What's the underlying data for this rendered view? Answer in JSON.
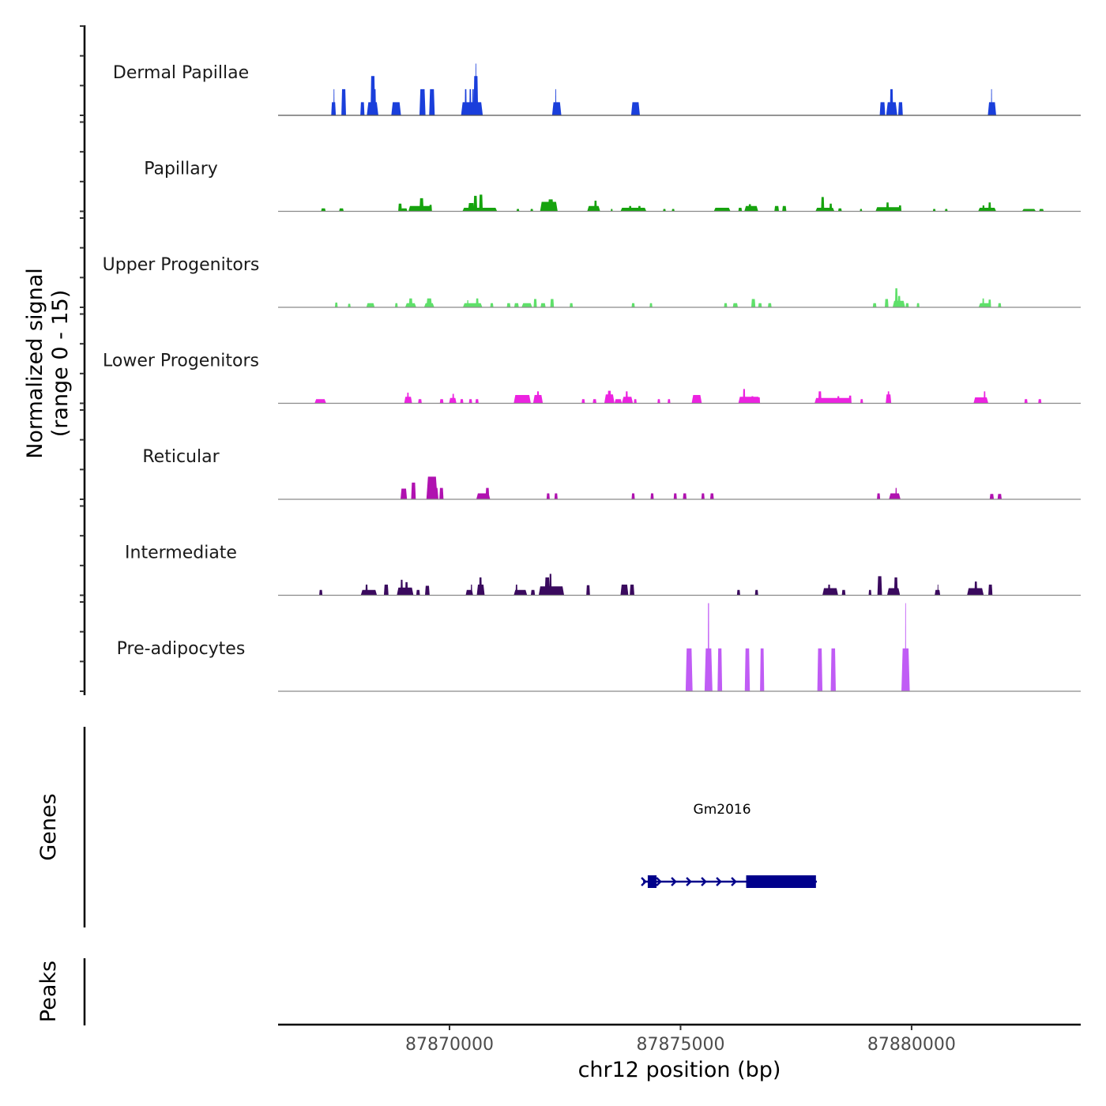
{
  "chart_data": {
    "type": "area",
    "title": "",
    "ylabel_line1": "Normalized signal",
    "ylabel_line2": "(range 0 - 15)",
    "xlabel": "chr12 position (bp)",
    "xlim": [
      87866290,
      87883660
    ],
    "ylim": [
      0,
      15
    ],
    "x_ticks": [
      87870000,
      87875000,
      87880000
    ],
    "x_tick_labels": [
      "87870000",
      "87875000",
      "87880000"
    ],
    "y_ticks_per_track": [
      0,
      5,
      10,
      15
    ],
    "grid": false,
    "tracks": [
      {
        "name": "Dermal Papillae",
        "color": "#1a3fdb",
        "segments": [
          [
            87867440,
            87867540,
            2.2
          ],
          [
            87867490,
            87867510,
            4.4
          ],
          [
            87867660,
            87867760,
            4.4
          ],
          [
            87868070,
            87868160,
            2.2
          ],
          [
            87868210,
            87868460,
            2.2
          ],
          [
            87868290,
            87868390,
            6.6
          ],
          [
            87868340,
            87868410,
            4.4
          ],
          [
            87868740,
            87868950,
            2.2
          ],
          [
            87869350,
            87869480,
            4.4
          ],
          [
            87869560,
            87869680,
            4.4
          ],
          [
            87870250,
            87870720,
            2.2
          ],
          [
            87870330,
            87870370,
            4.4
          ],
          [
            87870430,
            87870470,
            4.4
          ],
          [
            87870490,
            87870530,
            4.4
          ],
          [
            87870520,
            87870620,
            6.6
          ],
          [
            87870560,
            87870580,
            8.7
          ],
          [
            87872220,
            87872420,
            2.2
          ],
          [
            87872290,
            87872310,
            4.4
          ],
          [
            87873930,
            87874120,
            2.2
          ],
          [
            87879310,
            87879430,
            2.2
          ],
          [
            87879450,
            87879690,
            2.2
          ],
          [
            87879530,
            87879600,
            4.4
          ],
          [
            87879710,
            87879810,
            2.2
          ],
          [
            87881650,
            87881830,
            2.2
          ],
          [
            87881720,
            87881740,
            4.4
          ]
        ]
      },
      {
        "name": "Papillary",
        "color": "#16a30e",
        "segments": [
          [
            87867220,
            87867320,
            0.5
          ],
          [
            87867610,
            87867710,
            0.5
          ],
          [
            87868890,
            87868970,
            1.3
          ],
          [
            87868950,
            87869090,
            0.5
          ],
          [
            87869110,
            87869620,
            0.9
          ],
          [
            87869350,
            87869440,
            2.2
          ],
          [
            87869560,
            87869620,
            1.1
          ],
          [
            87870280,
            87871030,
            0.6
          ],
          [
            87870400,
            87870540,
            1.4
          ],
          [
            87870520,
            87870600,
            2.6
          ],
          [
            87870640,
            87870720,
            2.8
          ],
          [
            87871450,
            87871510,
            0.4
          ],
          [
            87871750,
            87871810,
            0.4
          ],
          [
            87871960,
            87872340,
            1.6
          ],
          [
            87872130,
            87872250,
            2.0
          ],
          [
            87872980,
            87873260,
            0.9
          ],
          [
            87873130,
            87873190,
            1.8
          ],
          [
            87873490,
            87873530,
            0.4
          ],
          [
            87873700,
            87874260,
            0.6
          ],
          [
            87873880,
            87873940,
            0.9
          ],
          [
            87874080,
            87874140,
            0.9
          ],
          [
            87874620,
            87874680,
            0.4
          ],
          [
            87874810,
            87874870,
            0.4
          ],
          [
            87875720,
            87876080,
            0.6
          ],
          [
            87876250,
            87876330,
            0.6
          ],
          [
            87876380,
            87876680,
            0.9
          ],
          [
            87876470,
            87876530,
            1.2
          ],
          [
            87877030,
            87877130,
            0.9
          ],
          [
            87877200,
            87877290,
            0.9
          ],
          [
            87877920,
            87878330,
            0.6
          ],
          [
            87878040,
            87878110,
            2.4
          ],
          [
            87878220,
            87878280,
            1.3
          ],
          [
            87878410,
            87878490,
            0.5
          ],
          [
            87878880,
            87878930,
            0.4
          ],
          [
            87879220,
            87879780,
            0.7
          ],
          [
            87879450,
            87879510,
            1.5
          ],
          [
            87879720,
            87879780,
            1.0
          ],
          [
            87880460,
            87880520,
            0.4
          ],
          [
            87880720,
            87880780,
            0.4
          ],
          [
            87881440,
            87881830,
            0.6
          ],
          [
            87881530,
            87881580,
            1.0
          ],
          [
            87881660,
            87881720,
            1.5
          ],
          [
            87882390,
            87882690,
            0.4
          ],
          [
            87882760,
            87882860,
            0.4
          ]
        ]
      },
      {
        "name": "Upper Progenitors",
        "color": "#5fe06a",
        "segments": [
          [
            87867520,
            87867580,
            0.8
          ],
          [
            87867800,
            87867860,
            0.6
          ],
          [
            87868200,
            87868380,
            0.7
          ],
          [
            87868820,
            87868880,
            0.7
          ],
          [
            87869040,
            87869280,
            0.7
          ],
          [
            87869120,
            87869200,
            1.5
          ],
          [
            87869450,
            87869670,
            0.7
          ],
          [
            87869500,
            87869620,
            1.5
          ],
          [
            87870290,
            87870710,
            0.7
          ],
          [
            87870380,
            87870410,
            1.2
          ],
          [
            87870570,
            87870630,
            1.5
          ],
          [
            87870880,
            87870950,
            0.7
          ],
          [
            87871240,
            87871320,
            0.7
          ],
          [
            87871400,
            87871500,
            0.7
          ],
          [
            87871560,
            87871790,
            0.7
          ],
          [
            87871820,
            87871890,
            1.4
          ],
          [
            87871970,
            87872080,
            0.7
          ],
          [
            87872180,
            87872260,
            1.4
          ],
          [
            87872600,
            87872670,
            0.7
          ],
          [
            87873940,
            87874010,
            0.7
          ],
          [
            87874330,
            87874390,
            0.7
          ],
          [
            87875940,
            87876010,
            0.7
          ],
          [
            87876130,
            87876240,
            0.7
          ],
          [
            87876530,
            87876620,
            1.4
          ],
          [
            87876680,
            87876760,
            0.7
          ],
          [
            87876890,
            87876970,
            0.7
          ],
          [
            87879160,
            87879240,
            0.7
          ],
          [
            87879420,
            87879500,
            1.4
          ],
          [
            87879590,
            87879860,
            1.1
          ],
          [
            87879640,
            87879700,
            3.2
          ],
          [
            87879700,
            87879760,
            1.9
          ],
          [
            87879870,
            87879940,
            0.7
          ],
          [
            87880110,
            87880170,
            0.7
          ],
          [
            87881450,
            87881720,
            0.7
          ],
          [
            87881530,
            87881570,
            1.5
          ],
          [
            87881660,
            87881720,
            1.3
          ],
          [
            87881870,
            87881940,
            0.7
          ]
        ]
      },
      {
        "name": "Lower Progenitors",
        "color": "#ec23e0",
        "segments": [
          [
            87867080,
            87867330,
            0.7
          ],
          [
            87869020,
            87869190,
            1.1
          ],
          [
            87869080,
            87869120,
            1.8
          ],
          [
            87869320,
            87869400,
            0.7
          ],
          [
            87869790,
            87869870,
            0.7
          ],
          [
            87869990,
            87870150,
            0.9
          ],
          [
            87870060,
            87870100,
            1.6
          ],
          [
            87870230,
            87870300,
            0.7
          ],
          [
            87870420,
            87870490,
            0.7
          ],
          [
            87870560,
            87870630,
            0.7
          ],
          [
            87871390,
            87871760,
            1.4
          ],
          [
            87871810,
            87872020,
            1.4
          ],
          [
            87871890,
            87871940,
            2.0
          ],
          [
            87872860,
            87872930,
            0.7
          ],
          [
            87873100,
            87873180,
            0.7
          ],
          [
            87873350,
            87873570,
            1.5
          ],
          [
            87873420,
            87873500,
            2.1
          ],
          [
            87873570,
            87873730,
            0.7
          ],
          [
            87873730,
            87873970,
            1.1
          ],
          [
            87873810,
            87873860,
            2.0
          ],
          [
            87873990,
            87874050,
            0.7
          ],
          [
            87874500,
            87874560,
            0.7
          ],
          [
            87874720,
            87874780,
            0.7
          ],
          [
            87875240,
            87875460,
            1.4
          ],
          [
            87876250,
            87876720,
            1.1
          ],
          [
            87876350,
            87876400,
            2.4
          ],
          [
            87876530,
            87876580,
            1.2
          ],
          [
            87876680,
            87876720,
            1.0
          ],
          [
            87877900,
            87878700,
            0.9
          ],
          [
            87877980,
            87878050,
            2.0
          ],
          [
            87878390,
            87878440,
            1.2
          ],
          [
            87878640,
            87878700,
            1.3
          ],
          [
            87878890,
            87878950,
            0.7
          ],
          [
            87879440,
            87879560,
            1.5
          ],
          [
            87879480,
            87879520,
            2.0
          ],
          [
            87881340,
            87881660,
            1.0
          ],
          [
            87881560,
            87881600,
            2.0
          ],
          [
            87882440,
            87882510,
            0.7
          ],
          [
            87882740,
            87882810,
            0.7
          ]
        ]
      },
      {
        "name": "Reticular",
        "color": "#b012b0",
        "segments": [
          [
            87868940,
            87869080,
            1.8
          ],
          [
            87869170,
            87869270,
            2.8
          ],
          [
            87869500,
            87869740,
            3.8
          ],
          [
            87869620,
            87869760,
            1.9
          ],
          [
            87869780,
            87869870,
            1.9
          ],
          [
            87870580,
            87870880,
            1.0
          ],
          [
            87870780,
            87870860,
            1.9
          ],
          [
            87872100,
            87872170,
            1.0
          ],
          [
            87872270,
            87872340,
            1.0
          ],
          [
            87873940,
            87874010,
            1.0
          ],
          [
            87874350,
            87874420,
            1.0
          ],
          [
            87874850,
            87874920,
            1.0
          ],
          [
            87875050,
            87875130,
            1.0
          ],
          [
            87875450,
            87875520,
            1.0
          ],
          [
            87875640,
            87875720,
            1.0
          ],
          [
            87879250,
            87879320,
            1.0
          ],
          [
            87879510,
            87879760,
            1.0
          ],
          [
            87879650,
            87879680,
            1.9
          ],
          [
            87881690,
            87881780,
            0.9
          ],
          [
            87881860,
            87881950,
            0.9
          ]
        ]
      },
      {
        "name": "Intermediate",
        "color": "#3a0a5e",
        "segments": [
          [
            87867180,
            87867250,
            0.9
          ],
          [
            87868080,
            87868430,
            0.9
          ],
          [
            87868180,
            87868230,
            1.8
          ],
          [
            87868580,
            87868680,
            1.8
          ],
          [
            87868860,
            87869220,
            1.3
          ],
          [
            87868940,
            87868990,
            2.6
          ],
          [
            87869040,
            87869100,
            2.2
          ],
          [
            87869280,
            87869360,
            0.9
          ],
          [
            87869470,
            87869570,
            1.6
          ],
          [
            87870350,
            87870510,
            0.9
          ],
          [
            87870460,
            87870490,
            1.8
          ],
          [
            87870590,
            87870760,
            1.8
          ],
          [
            87870640,
            87870700,
            3.0
          ],
          [
            87871390,
            87871680,
            0.9
          ],
          [
            87871430,
            87871470,
            1.8
          ],
          [
            87871760,
            87871850,
            0.9
          ],
          [
            87871930,
            87872480,
            1.5
          ],
          [
            87872060,
            87872170,
            3.0
          ],
          [
            87872160,
            87872210,
            3.6
          ],
          [
            87872960,
            87873040,
            1.7
          ],
          [
            87873700,
            87873870,
            1.8
          ],
          [
            87873900,
            87874000,
            1.8
          ],
          [
            87876220,
            87876290,
            0.9
          ],
          [
            87876610,
            87876680,
            0.9
          ],
          [
            87878070,
            87878410,
            1.2
          ],
          [
            87878190,
            87878240,
            1.8
          ],
          [
            87878490,
            87878570,
            0.9
          ],
          [
            87879070,
            87879130,
            0.9
          ],
          [
            87879260,
            87879360,
            3.2
          ],
          [
            87879470,
            87879750,
            1.2
          ],
          [
            87879620,
            87879700,
            3.0
          ],
          [
            87880500,
            87880620,
            0.9
          ],
          [
            87880560,
            87880580,
            1.8
          ],
          [
            87881200,
            87881560,
            1.2
          ],
          [
            87881360,
            87881420,
            2.3
          ],
          [
            87881660,
            87881750,
            1.8
          ]
        ]
      },
      {
        "name": "Pre-adipocytes",
        "color": "#c05cf5",
        "segments": [
          [
            87875110,
            87875260,
            7.2
          ],
          [
            87875520,
            87875690,
            7.2
          ],
          [
            87875590,
            87875620,
            14.8
          ],
          [
            87875800,
            87875900,
            7.2
          ],
          [
            87876390,
            87876500,
            7.2
          ],
          [
            87876720,
            87876810,
            7.2
          ],
          [
            87877960,
            87878070,
            7.2
          ],
          [
            87878250,
            87878360,
            7.2
          ],
          [
            87879780,
            87879960,
            7.2
          ],
          [
            87879860,
            87879880,
            14.8
          ]
        ]
      }
    ],
    "genes": [
      {
        "name": "Gm2016",
        "color": "#00008b",
        "strand": "+",
        "start": 87874190,
        "end": 87877950,
        "exons": [
          [
            87874290,
            87874480
          ],
          [
            87876420,
            87877930
          ]
        ]
      }
    ],
    "lower_tracks": [
      {
        "name": "Genes"
      },
      {
        "name": "Peaks"
      }
    ]
  }
}
